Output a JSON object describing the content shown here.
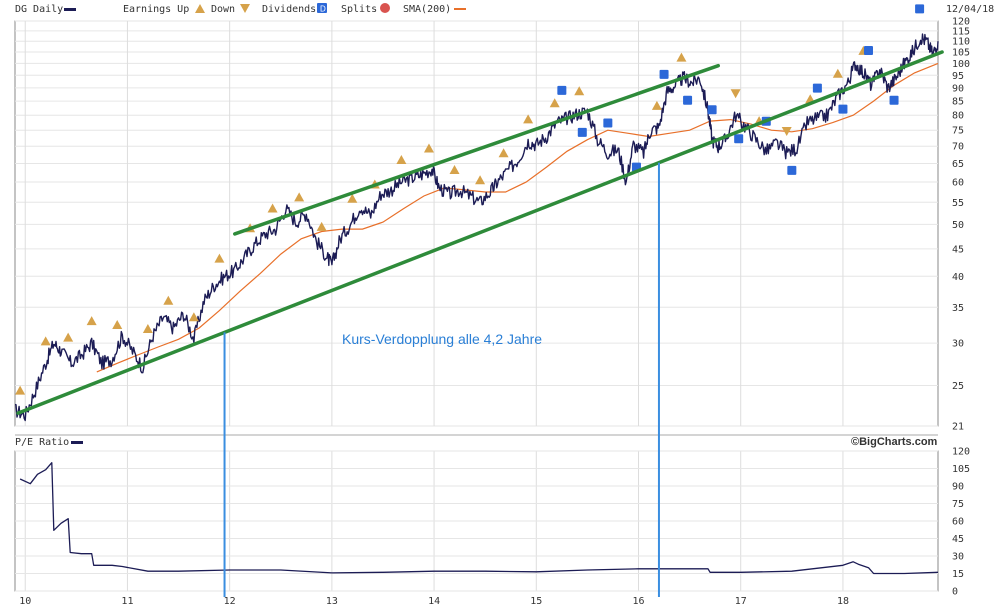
{
  "header": {
    "ticker_label": "DG Daily",
    "legend": {
      "earnings_up": "Earnings Up",
      "down": "Down",
      "dividends": "Dividends",
      "splits": "Splits",
      "sma": "SMA(200)"
    },
    "date": "12/04/18"
  },
  "colors": {
    "price": "#1c1c55",
    "sma": "#e8702a",
    "channel": "#2e8b3a",
    "marker_lines": "#3a8ee0",
    "annotation": "#2a7fd6",
    "earnings_marker": "#d6a24a",
    "dividend_marker": "#2c68d8"
  },
  "annotation_text": "Kurs-Verdopplung alle 4,2 Jahre",
  "watermark": "©BigCharts.com",
  "lower_panel_label": "P/E Ratio",
  "chart_data": [
    {
      "type": "line",
      "panel": "price",
      "y_scale": "log",
      "ylim": [
        21,
        120
      ],
      "y_ticks": [
        21,
        25,
        30,
        35,
        40,
        45,
        50,
        55,
        60,
        65,
        70,
        75,
        80,
        85,
        90,
        95,
        100,
        105,
        110,
        115,
        120
      ],
      "x_ticks": [
        "10",
        "11",
        "12",
        "13",
        "14",
        "15",
        "16",
        "17",
        "18"
      ],
      "xlim": [
        2009.9,
        2018.93
      ],
      "series": [
        {
          "name": "DG Daily",
          "x": [
            2009.9,
            2010.0,
            2010.1,
            2010.2,
            2010.28,
            2010.35,
            2010.45,
            2010.55,
            2010.65,
            2010.75,
            2010.85,
            2010.95,
            2011.05,
            2011.15,
            2011.25,
            2011.35,
            2011.45,
            2011.55,
            2011.65,
            2011.75,
            2011.85,
            2011.95,
            2012.05,
            2012.15,
            2012.25,
            2012.35,
            2012.45,
            2012.55,
            2012.65,
            2012.75,
            2012.85,
            2012.95,
            2013.0,
            2013.08,
            2013.18,
            2013.28,
            2013.38,
            2013.48,
            2013.58,
            2013.68,
            2013.78,
            2013.88,
            2013.98,
            2014.05,
            2014.15,
            2014.25,
            2014.35,
            2014.45,
            2014.55,
            2014.62,
            2014.72,
            2014.82,
            2014.92,
            2015.0,
            2015.1,
            2015.2,
            2015.3,
            2015.4,
            2015.5,
            2015.6,
            2015.7,
            2015.8,
            2015.88,
            2015.95,
            2016.05,
            2016.12,
            2016.2,
            2016.28,
            2016.36,
            2016.44,
            2016.52,
            2016.6,
            2016.68,
            2016.72,
            2016.78,
            2016.85,
            2016.95,
            2017.05,
            2017.15,
            2017.25,
            2017.35,
            2017.45,
            2017.55,
            2017.65,
            2017.75,
            2017.85,
            2017.95,
            2018.05,
            2018.12,
            2018.2,
            2018.28,
            2018.36,
            2018.44,
            2018.52,
            2018.6,
            2018.68,
            2018.76,
            2018.82,
            2018.88,
            2018.93
          ],
          "values": [
            22.5,
            22.0,
            24.5,
            27.5,
            30.0,
            29.0,
            27.5,
            28.5,
            30.0,
            27.5,
            28.0,
            31.0,
            29.0,
            27.0,
            31.0,
            33.5,
            32.0,
            34.0,
            30.5,
            36.0,
            38.5,
            40.0,
            41.0,
            43.5,
            46.0,
            48.0,
            49.0,
            53.5,
            50.5,
            52.5,
            46.5,
            43.5,
            42.0,
            47.0,
            50.0,
            54.0,
            52.0,
            57.0,
            58.0,
            60.0,
            61.0,
            62.0,
            63.5,
            58.5,
            57.0,
            58.0,
            56.5,
            55.0,
            57.5,
            60.0,
            63.0,
            66.0,
            71.5,
            70.5,
            73.0,
            77.5,
            79.0,
            80.5,
            81.5,
            72.0,
            68.0,
            69.0,
            60.0,
            70.5,
            68.0,
            75.0,
            76.0,
            88.5,
            91.0,
            94.0,
            92.0,
            94.0,
            81.5,
            72.0,
            70.0,
            72.0,
            80.0,
            76.0,
            72.0,
            68.5,
            71.0,
            68.0,
            69.5,
            77.5,
            79.0,
            80.0,
            87.0,
            92.0,
            100.0,
            96.0,
            91.0,
            97.5,
            90.0,
            94.0,
            100.0,
            105.0,
            112.0,
            110.0,
            104.0,
            110.0
          ]
        },
        {
          "name": "SMA(200)",
          "x": [
            2010.7,
            2010.9,
            2011.1,
            2011.3,
            2011.5,
            2011.7,
            2011.9,
            2012.1,
            2012.3,
            2012.5,
            2012.7,
            2012.9,
            2013.1,
            2013.3,
            2013.5,
            2013.7,
            2013.9,
            2014.1,
            2014.3,
            2014.5,
            2014.7,
            2014.9,
            2015.1,
            2015.3,
            2015.5,
            2015.7,
            2015.9,
            2016.1,
            2016.3,
            2016.5,
            2016.7,
            2016.9,
            2017.1,
            2017.3,
            2017.5,
            2017.7,
            2017.9,
            2018.1,
            2018.3,
            2018.5,
            2018.7,
            2018.93
          ],
          "values": [
            26.5,
            27.5,
            28.5,
            29.5,
            30.5,
            32.0,
            34.5,
            37.5,
            40.5,
            44.0,
            47.0,
            48.5,
            49.0,
            49.0,
            50.5,
            53.5,
            56.5,
            58.5,
            58.0,
            57.5,
            57.5,
            60.0,
            64.0,
            68.5,
            72.0,
            75.0,
            74.0,
            73.0,
            74.0,
            75.0,
            78.0,
            78.5,
            77.0,
            75.0,
            74.5,
            75.5,
            77.5,
            80.0,
            85.0,
            91.0,
            96.0,
            100.0
          ]
        }
      ],
      "channel_lines": [
        {
          "x": [
            2009.93,
            2018.97
          ],
          "values": [
            22.2,
            105.0
          ]
        },
        {
          "x": [
            2012.05,
            2016.78
          ],
          "values": [
            48.0,
            99.0
          ]
        }
      ],
      "vertical_markers_x": [
        2011.95,
        2016.2
      ],
      "earnings_up_x": [
        2009.95,
        2010.2,
        2010.42,
        2010.65,
        2010.9,
        2011.2,
        2011.4,
        2011.65,
        2011.9,
        2012.2,
        2012.42,
        2012.68,
        2012.9,
        2013.2,
        2013.42,
        2013.68,
        2013.95,
        2014.2,
        2014.45,
        2014.68,
        2014.92,
        2015.18,
        2015.42,
        2016.18,
        2016.42,
        2017.18,
        2017.68,
        2017.95,
        2018.2
      ],
      "earnings_down_x": [
        2016.95,
        2017.45
      ],
      "dividends_x": [
        2015.25,
        2015.45,
        2015.7,
        2015.98,
        2016.25,
        2016.48,
        2016.72,
        2016.98,
        2017.25,
        2017.5,
        2017.75,
        2018.0,
        2018.25,
        2018.5,
        2018.75
      ]
    },
    {
      "type": "line",
      "panel": "pe_ratio",
      "ylim": [
        0,
        120
      ],
      "y_ticks": [
        0,
        15,
        30,
        45,
        60,
        75,
        90,
        105,
        120
      ],
      "x_ticks": [
        "10",
        "11",
        "12",
        "13",
        "14",
        "15",
        "16",
        "17",
        "18"
      ],
      "xlim": [
        2009.9,
        2018.93
      ],
      "series": [
        {
          "name": "P/E Ratio",
          "x": [
            2009.95,
            2010.05,
            2010.12,
            2010.2,
            2010.26,
            2010.28,
            2010.35,
            2010.42,
            2010.44,
            2010.55,
            2010.65,
            2010.67,
            2010.85,
            2010.95,
            2011.2,
            2011.5,
            2012.0,
            2012.5,
            2013.0,
            2013.5,
            2014.0,
            2014.5,
            2015.0,
            2015.5,
            2016.0,
            2016.5,
            2016.68,
            2016.7,
            2017.0,
            2017.5,
            2018.0,
            2018.1,
            2018.15,
            2018.25,
            2018.3,
            2018.6,
            2018.93
          ],
          "values": [
            96,
            92,
            100,
            104,
            110,
            52,
            58,
            62,
            33,
            32,
            32,
            22,
            22,
            21,
            17,
            17,
            18,
            18,
            15.5,
            16,
            17,
            17,
            16.5,
            18,
            19,
            19,
            19,
            16,
            16,
            17,
            22,
            25,
            23,
            20,
            15,
            15,
            16
          ]
        }
      ]
    }
  ]
}
